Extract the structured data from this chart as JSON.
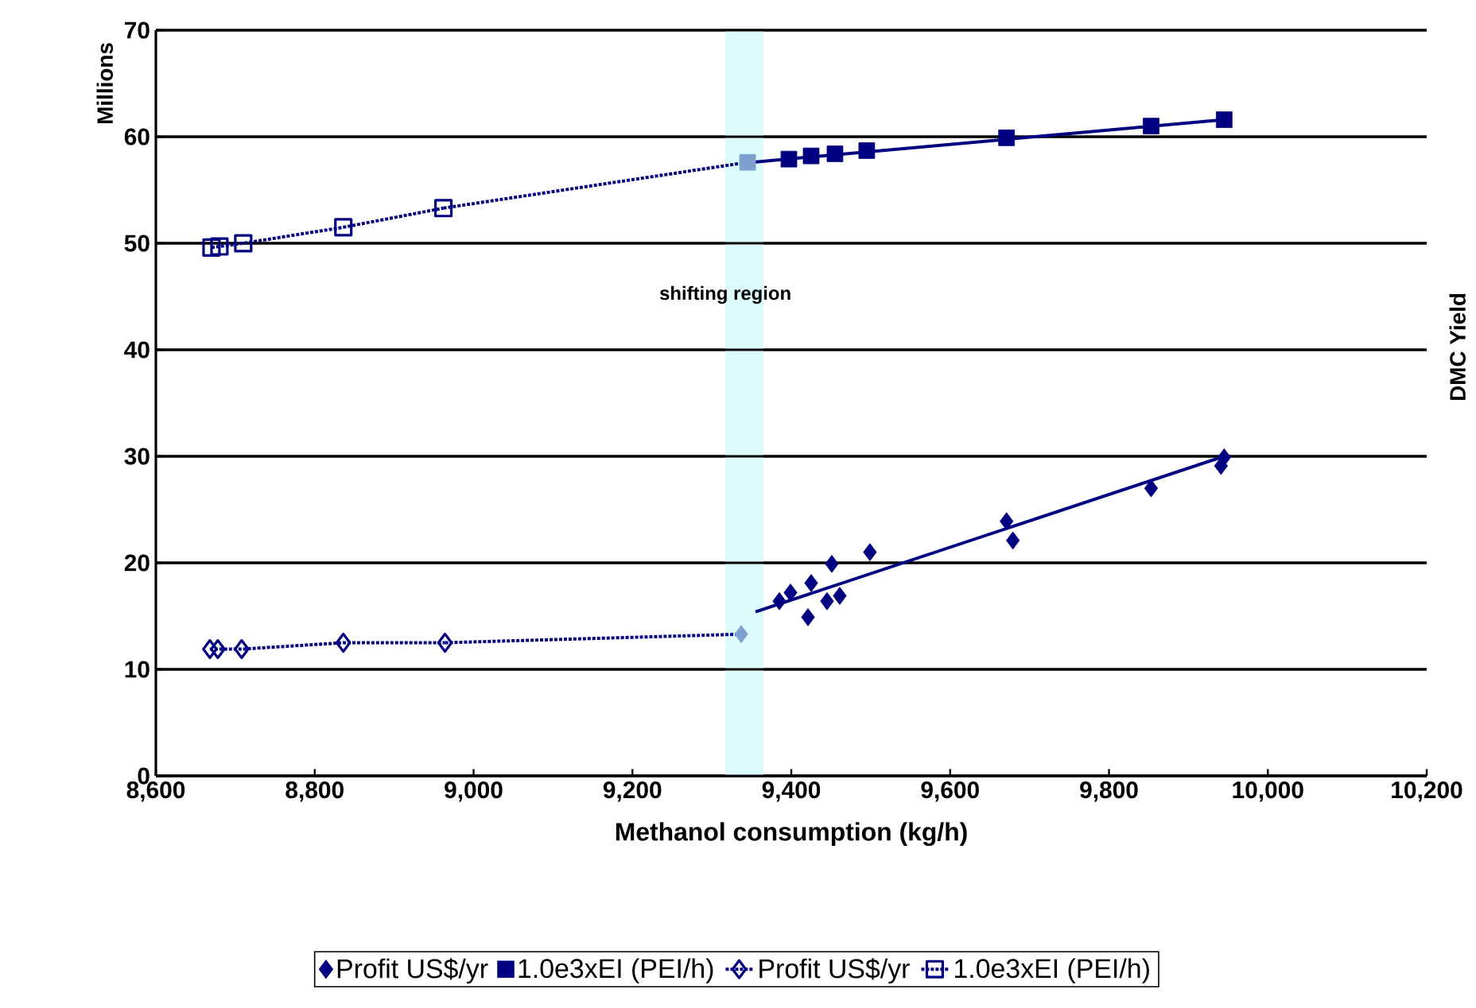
{
  "chart_data": {
    "type": "scatter",
    "xlabel": "Methanol consumption (kg/h)",
    "ylabel": "Millions",
    "y2label": "DMC Yield",
    "xlim": [
      8600,
      10200
    ],
    "ylim": [
      0,
      70
    ],
    "xticks": [
      {
        "value": 8600,
        "label": "8,600"
      },
      {
        "value": 8800,
        "label": "8,800"
      },
      {
        "value": 9000,
        "label": "9,000"
      },
      {
        "value": 9200,
        "label": "9,200"
      },
      {
        "value": 9400,
        "label": "9,400"
      },
      {
        "value": 9600,
        "label": "9,600"
      },
      {
        "value": 9800,
        "label": "9,800"
      },
      {
        "value": 10000,
        "label": "10,000"
      },
      {
        "value": 10200,
        "label": "10,200"
      }
    ],
    "yticks": [
      0,
      10,
      20,
      30,
      40,
      50,
      60,
      70
    ],
    "grid": "y",
    "legend": "bottom",
    "bands": [
      {
        "axis": "x",
        "from": 9317,
        "to": 9365,
        "label": "shifting region",
        "color": "#dcfcfc"
      }
    ],
    "series": [
      {
        "name": "Profit US$/yr",
        "marker": "diamond",
        "color": "#000080",
        "x": [
          9385,
          9399,
          9425,
          9451,
          9421,
          9445,
          9461,
          9499,
          9671,
          9679,
          9853,
          9945,
          9941
        ],
        "values": [
          16.4,
          17.2,
          18.1,
          19.9,
          14.9,
          16.4,
          16.9,
          21.0,
          23.9,
          22.1,
          27.0,
          29.9,
          29.1
        ]
      },
      {
        "name": "1.0e3xEI (PEI/h)",
        "marker": "square",
        "color": "#000080",
        "x": [
          9397,
          9425,
          9455,
          9495,
          9671,
          9853,
          9945
        ],
        "values": [
          57.9,
          58.2,
          58.4,
          58.7,
          59.9,
          61.0,
          61.6
        ]
      },
      {
        "name": "Profit US$/yr",
        "type": "line",
        "line_style": "dotted",
        "marker": "diamond",
        "color": "#000080",
        "x": [
          8668,
          8678,
          8708,
          8836,
          8964
        ],
        "values": [
          11.9,
          11.9,
          11.9,
          12.5,
          12.5
        ]
      },
      {
        "name": "1.0e3xEI (PEI/h)",
        "type": "line",
        "line_style": "dotted",
        "marker": "square",
        "color": "#000080",
        "x": [
          8670,
          8680,
          8710,
          8836,
          8962
        ],
        "values": [
          49.6,
          49.7,
          50.0,
          51.5,
          53.3
        ]
      },
      {
        "marker": "diamond",
        "color": "#7f9fd0",
        "x": [
          9337
        ],
        "values": [
          13.3
        ]
      },
      {
        "marker": "square",
        "color": "#7f9fd0",
        "x": [
          9345
        ],
        "values": [
          57.6
        ]
      },
      {
        "type": "line",
        "marker": "none",
        "line_style": "solid",
        "color": "#000080",
        "x": [
          9355,
          9941
        ],
        "values": [
          15.4,
          29.9
        ]
      },
      {
        "type": "line",
        "marker": "none",
        "line_style": "solid",
        "color": "#000080",
        "x": [
          9350,
          9945
        ],
        "values": [
          57.6,
          61.6
        ]
      },
      {
        "type": "line",
        "marker": "none",
        "line_style": "dotted",
        "color": "#000080",
        "x": [
          8964,
          9337
        ],
        "values": [
          12.5,
          13.3
        ]
      },
      {
        "type": "line",
        "marker": "none",
        "line_style": "dotted",
        "color": "#000080",
        "x": [
          8962,
          9345
        ],
        "values": [
          53.3,
          57.6
        ]
      }
    ]
  }
}
